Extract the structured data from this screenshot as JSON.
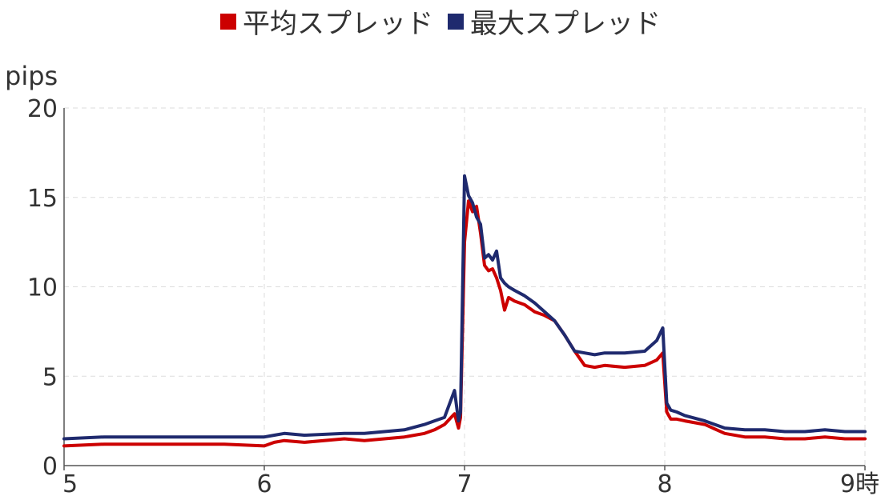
{
  "chart_data": {
    "type": "line",
    "title": "",
    "xlabel": "時",
    "ylabel": "pips",
    "xlim": [
      5,
      9
    ],
    "ylim": [
      0,
      20
    ],
    "grid": true,
    "legend_position": "top-center",
    "x_ticks": [
      {
        "value": 5,
        "label": "5"
      },
      {
        "value": 6,
        "label": "6"
      },
      {
        "value": 7,
        "label": "7"
      },
      {
        "value": 8,
        "label": "8"
      },
      {
        "value": 9,
        "label": "9時"
      }
    ],
    "y_ticks": [
      {
        "value": 0,
        "label": "0"
      },
      {
        "value": 5,
        "label": "5"
      },
      {
        "value": 10,
        "label": "10"
      },
      {
        "value": 15,
        "label": "15"
      },
      {
        "value": 20,
        "label": "20"
      }
    ],
    "x": [
      5.0,
      5.2,
      5.4,
      5.6,
      5.8,
      6.0,
      6.05,
      6.1,
      6.2,
      6.4,
      6.5,
      6.6,
      6.7,
      6.8,
      6.85,
      6.9,
      6.95,
      6.97,
      6.98,
      7.0,
      7.02,
      7.04,
      7.06,
      7.08,
      7.1,
      7.12,
      7.14,
      7.16,
      7.18,
      7.2,
      7.22,
      7.25,
      7.3,
      7.35,
      7.4,
      7.45,
      7.5,
      7.55,
      7.6,
      7.65,
      7.7,
      7.8,
      7.9,
      7.96,
      7.99,
      8.01,
      8.03,
      8.06,
      8.1,
      8.2,
      8.3,
      8.4,
      8.5,
      8.6,
      8.7,
      8.8,
      8.9,
      9.0
    ],
    "series": [
      {
        "name": "平均スプレッド",
        "color": "#cc0000",
        "values": [
          1.1,
          1.2,
          1.2,
          1.2,
          1.2,
          1.1,
          1.3,
          1.4,
          1.3,
          1.5,
          1.4,
          1.5,
          1.6,
          1.8,
          2.0,
          2.3,
          2.9,
          2.1,
          2.7,
          12.5,
          14.8,
          14.2,
          14.5,
          13.0,
          11.2,
          10.9,
          11.0,
          10.5,
          9.8,
          8.7,
          9.4,
          9.2,
          9.0,
          8.6,
          8.4,
          8.1,
          7.3,
          6.4,
          5.6,
          5.5,
          5.6,
          5.5,
          5.6,
          5.9,
          6.3,
          3.0,
          2.6,
          2.6,
          2.5,
          2.3,
          1.8,
          1.6,
          1.6,
          1.5,
          1.5,
          1.6,
          1.5,
          1.5
        ]
      },
      {
        "name": "最大スプレッド",
        "color": "#1f2a6e",
        "values": [
          1.5,
          1.6,
          1.6,
          1.6,
          1.6,
          1.6,
          1.7,
          1.8,
          1.7,
          1.8,
          1.8,
          1.9,
          2.0,
          2.3,
          2.5,
          2.7,
          4.2,
          2.5,
          3.0,
          16.2,
          15.1,
          14.7,
          13.9,
          13.5,
          11.6,
          11.8,
          11.5,
          12.0,
          10.5,
          10.2,
          10.0,
          9.8,
          9.5,
          9.1,
          8.6,
          8.1,
          7.3,
          6.4,
          6.3,
          6.2,
          6.3,
          6.3,
          6.4,
          7.0,
          7.7,
          3.5,
          3.1,
          3.0,
          2.8,
          2.5,
          2.1,
          2.0,
          2.0,
          1.9,
          1.9,
          2.0,
          1.9,
          1.9
        ]
      }
    ]
  }
}
